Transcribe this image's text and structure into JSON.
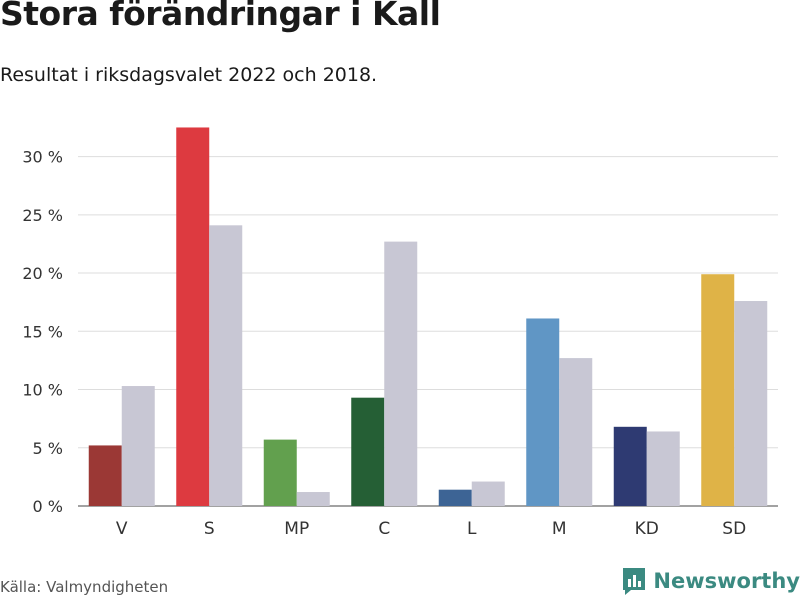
{
  "header": {
    "title": "Stora förändringar i Kall",
    "subtitle": "Resultat i riksdagsvalet 2022 och 2018."
  },
  "footer": {
    "source": "Källa: Valmyndigheten",
    "brand": "Newsworthy",
    "brand_color": "#3b8a81"
  },
  "chart_data": {
    "type": "bar",
    "categories": [
      "V",
      "S",
      "MP",
      "C",
      "L",
      "M",
      "KD",
      "SD"
    ],
    "series": [
      {
        "values": [
          5.2,
          32.5,
          5.7,
          9.3,
          1.4,
          16.1,
          6.8,
          19.9
        ],
        "colors": [
          "#9b3835",
          "#dd3a40",
          "#62a04e",
          "#255f35",
          "#3d6495",
          "#6096c5",
          "#2e3a72",
          "#dfb347"
        ]
      },
      {
        "values": [
          10.3,
          24.1,
          1.2,
          22.7,
          2.1,
          12.7,
          6.4,
          17.6
        ],
        "color": "#c8c7d4"
      }
    ],
    "y_ticks": [
      0,
      5,
      10,
      15,
      20,
      25,
      30
    ],
    "y_tick_suffix": " %",
    "ylim": [
      0,
      34
    ],
    "grid": true
  }
}
